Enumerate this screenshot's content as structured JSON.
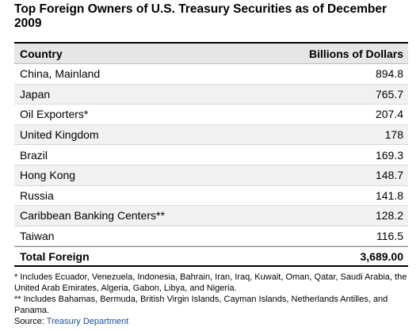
{
  "title": "Top Foreign Owners of U.S. Treasury Securities as of December 2009",
  "chart_data": {
    "type": "table",
    "columns": [
      "Country",
      "Billions of Dollars"
    ],
    "rows": [
      {
        "country": "China, Mainland",
        "value": "894.8"
      },
      {
        "country": "Japan",
        "value": "765.7"
      },
      {
        "country": "Oil Exporters*",
        "value": "207.4"
      },
      {
        "country": "United Kingdom",
        "value": "178"
      },
      {
        "country": "Brazil",
        "value": "169.3"
      },
      {
        "country": "Hong Kong",
        "value": "148.7"
      },
      {
        "country": "Russia",
        "value": "141.8"
      },
      {
        "country": "Caribbean Banking Centers**",
        "value": "128.2"
      },
      {
        "country": "Taiwan",
        "value": "116.5"
      }
    ],
    "total": {
      "label": "Total Foreign",
      "value": "3,689.00"
    }
  },
  "footnotes": {
    "note1": "* Includes Ecuador, Venezuela, Indonesia, Bahrain, Iran, Iraq, Kuwait, Oman, Qatar, Saudi Arabia, the United Arab Emirates, Algeria, Gabon, Libya, and Nigeria.",
    "note2": "** Includes Bahamas, Bermuda, British Virgin Islands, Cayman Islands, Netherlands Antilles, and Panama.",
    "source_label": "Source: ",
    "source_link": "Treasury Department"
  },
  "colors": {
    "link": "#1a4d99",
    "header_bg": "#e6e6e6",
    "alt_row_bg": "#f1f1f1"
  }
}
